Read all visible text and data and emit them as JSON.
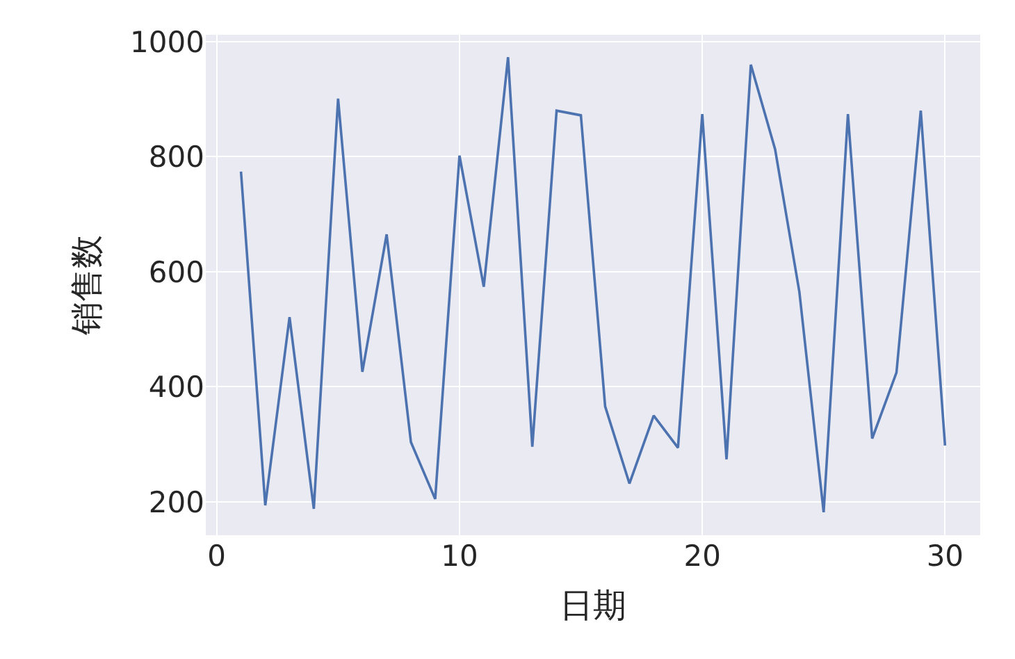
{
  "chart_data": {
    "type": "line",
    "xlabel": "日期",
    "ylabel": "销售数",
    "x": [
      1,
      2,
      3,
      4,
      5,
      6,
      7,
      8,
      9,
      10,
      11,
      12,
      13,
      14,
      15,
      16,
      17,
      18,
      19,
      20,
      21,
      22,
      23,
      24,
      25,
      26,
      27,
      28,
      29,
      30
    ],
    "series": [
      {
        "color": "#4c72b0",
        "values": [
          774,
          194,
          521,
          188,
          901,
          426,
          665,
          304,
          205,
          802,
          574,
          973,
          296,
          880,
          872,
          366,
          232,
          350,
          294,
          874,
          274,
          960,
          813,
          565,
          182,
          874,
          310,
          425,
          880,
          298
        ]
      }
    ],
    "xlim": [
      -0.45,
      31.45
    ],
    "xticks": [
      0,
      10,
      20,
      30
    ],
    "ylim": [
      142,
      1012
    ],
    "yticks": [
      200,
      400,
      600,
      800,
      1000
    ],
    "grid": true,
    "marker": "none",
    "line_style": "solid"
  }
}
